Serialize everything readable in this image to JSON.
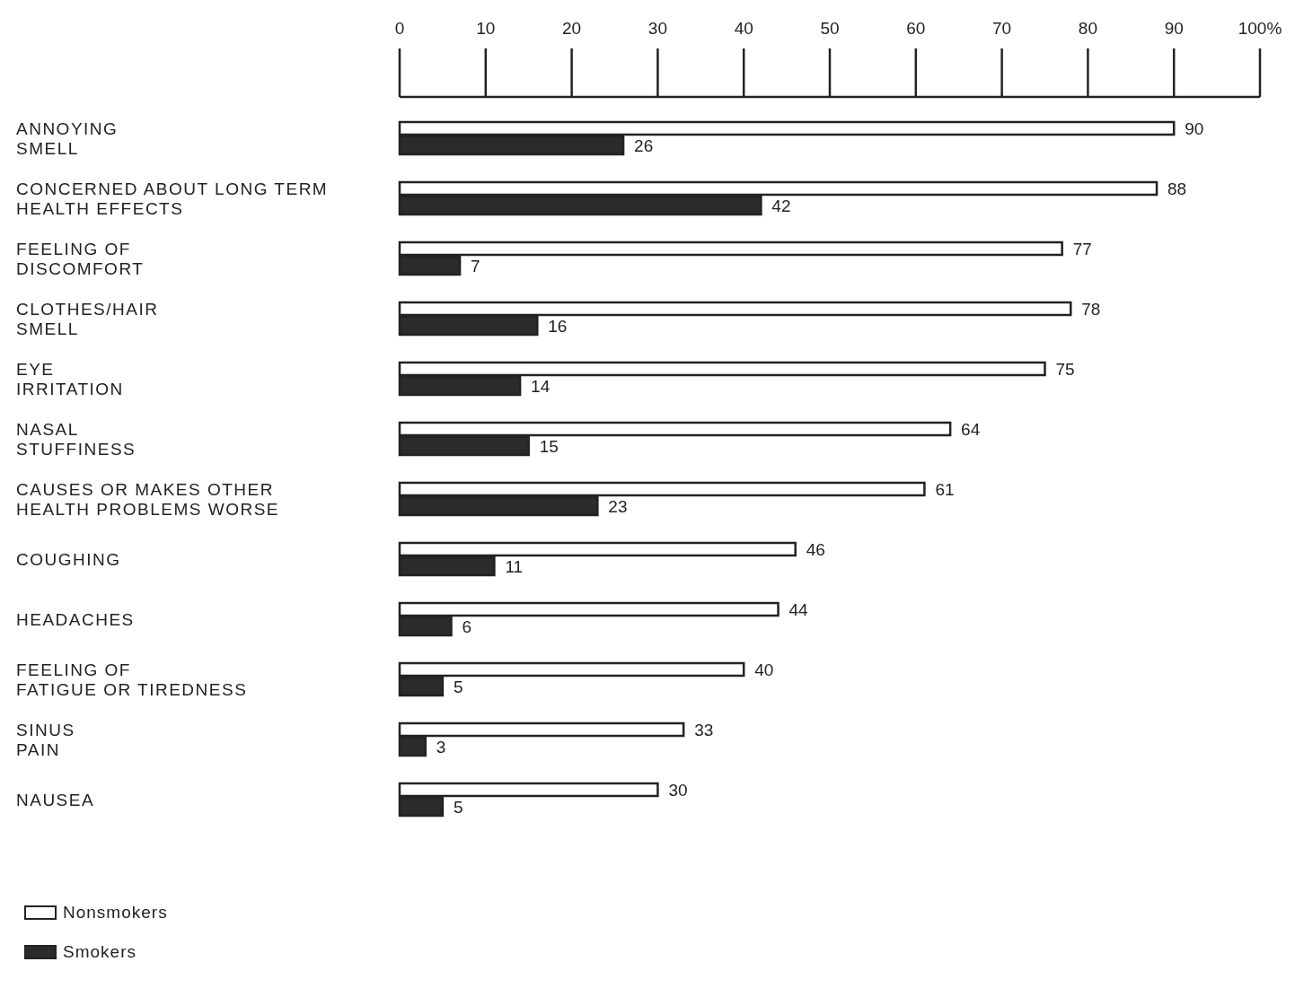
{
  "chart_data": {
    "type": "bar",
    "orientation": "horizontal",
    "categories": [
      "ANNOYING\nSMELL",
      "CONCERNED ABOUT LONG TERM\nHEALTH EFFECTS",
      "FEELING OF\nDISCOMFORT",
      "CLOTHES/HAIR\nSMELL",
      "EYE\nIRRITATION",
      "NASAL\nSTUFFINESS",
      "CAUSES OR MAKES OTHER\nHEALTH PROBLEMS WORSE",
      "COUGHING",
      "HEADACHES",
      "FEELING OF\nFATIGUE OR TIREDNESS",
      "SINUS\nPAIN",
      "NAUSEA"
    ],
    "series": [
      {
        "name": "Nonsmokers",
        "color": "#ffffff",
        "values": [
          90,
          88,
          77,
          78,
          75,
          64,
          61,
          46,
          44,
          40,
          33,
          30
        ]
      },
      {
        "name": "Smokers",
        "color": "#2b2b2b",
        "values": [
          26,
          42,
          7,
          16,
          14,
          15,
          23,
          11,
          6,
          5,
          3,
          5
        ]
      }
    ],
    "xlim": [
      0,
      100
    ],
    "xticks": [
      0,
      10,
      20,
      30,
      40,
      50,
      60,
      70,
      80,
      90,
      {
        "value": 100,
        "label": "100%"
      }
    ],
    "data_labels": true,
    "legend": "bottom left",
    "grid": false
  }
}
